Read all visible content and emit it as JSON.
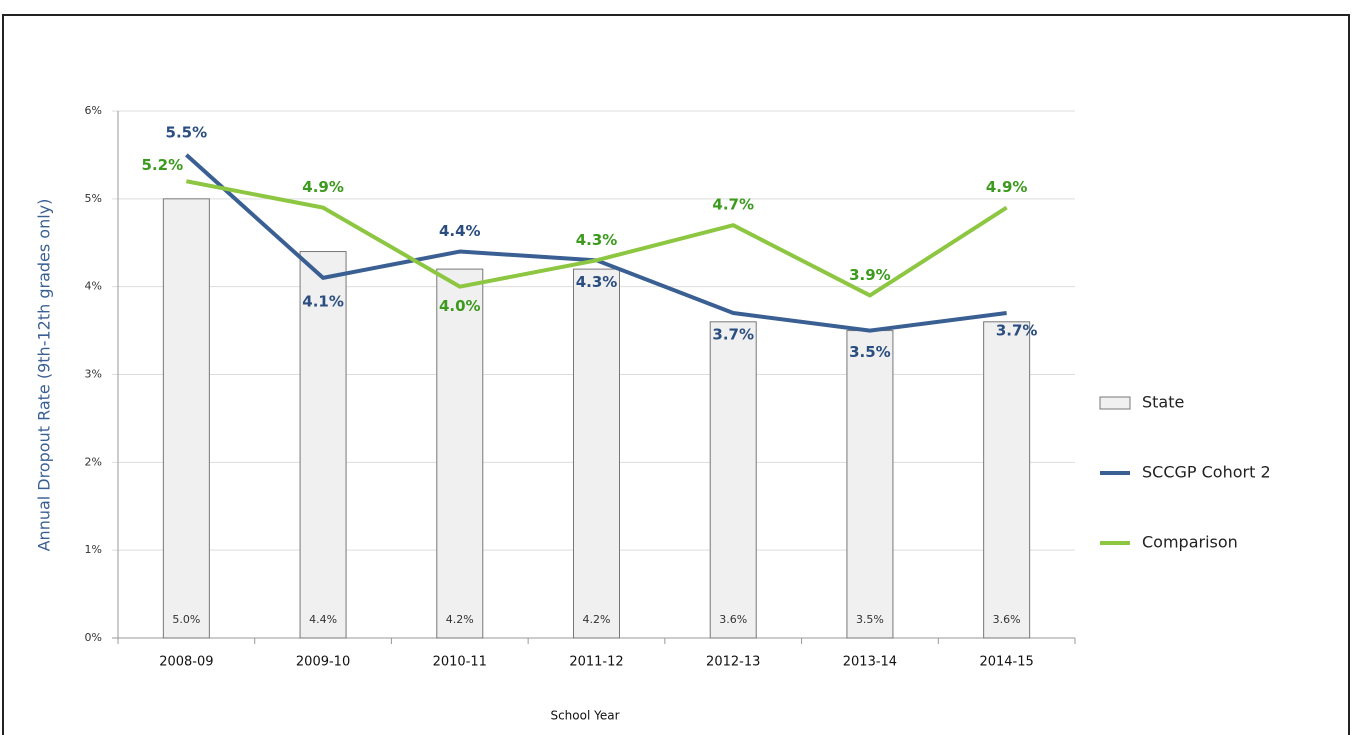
{
  "chart_data": {
    "type": "bar-line",
    "x_label": "School Year",
    "y_label": "Annual Dropout Rate (9th-12th grades only)",
    "categories": [
      "2008-09",
      "2009-10",
      "2010-11",
      "2011-12",
      "2012-13",
      "2013-14",
      "2014-15"
    ],
    "series": [
      {
        "name": "State",
        "type": "bar",
        "color": "#f0f0f0",
        "values": [
          5.0,
          4.4,
          4.2,
          4.2,
          3.6,
          3.5,
          3.6
        ],
        "value_labels": [
          "5.0%",
          "4.4%",
          "4.2%",
          "4.2%",
          "3.6%",
          "3.5%",
          "3.6%"
        ]
      },
      {
        "name": "SCCGP Cohort 2",
        "type": "line",
        "color": "#3a5f93",
        "values": [
          5.5,
          4.1,
          4.4,
          4.3,
          3.7,
          3.5,
          3.7
        ],
        "value_labels": [
          "5.5%",
          "4.1%",
          "4.4%",
          "4.3%",
          "3.7%",
          "3.5%",
          "3.7%"
        ]
      },
      {
        "name": "Comparison",
        "type": "line",
        "color": "#8dc641",
        "values": [
          5.2,
          4.9,
          4.0,
          4.3,
          4.7,
          3.9,
          4.9
        ],
        "value_labels": [
          "5.2%",
          "4.9%",
          "4.0%",
          "4.3%",
          "4.7%",
          "3.9%",
          "4.9%"
        ]
      }
    ],
    "ylim": [
      0,
      6
    ],
    "yticks": [
      {
        "value": 0,
        "label": "0%"
      },
      {
        "value": 1,
        "label": "1%"
      },
      {
        "value": 2,
        "label": "2%"
      },
      {
        "value": 3,
        "label": "3%"
      },
      {
        "value": 4,
        "label": "4%"
      },
      {
        "value": 5,
        "label": "5%"
      },
      {
        "value": 6,
        "label": "6%"
      }
    ],
    "grid": true,
    "legend": "right"
  }
}
